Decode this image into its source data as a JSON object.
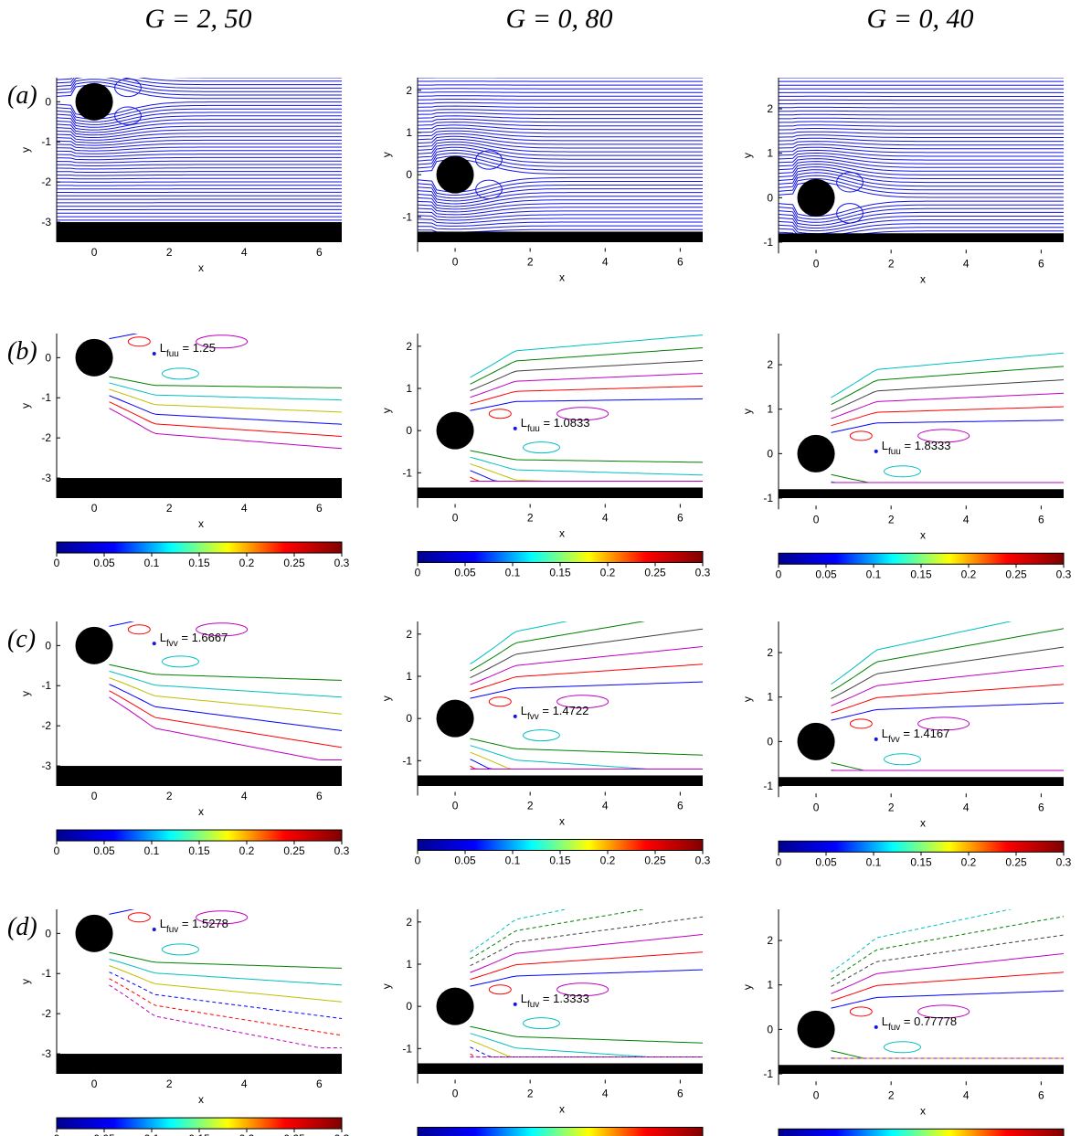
{
  "columns": [
    {
      "label": "G = 2, 50"
    },
    {
      "label": "G = 0, 80"
    },
    {
      "label": "G = 0, 40"
    }
  ],
  "rows": [
    {
      "label": "(a)"
    },
    {
      "label": "(b)"
    },
    {
      "label": "(c)"
    },
    {
      "label": "(d)"
    }
  ],
  "axes": {
    "xlabel": "x",
    "ylabel": "y",
    "xticks": [
      "0",
      "2",
      "4",
      "6"
    ],
    "yticks_by_column": [
      [
        "0",
        "-1",
        "-2",
        "-3"
      ],
      [
        "2",
        "1",
        "0",
        "-1"
      ],
      [
        "2",
        "1",
        "0",
        "-1"
      ]
    ]
  },
  "colorbar": {
    "ticks": [
      "0",
      "0.05",
      "0.1",
      "0.15",
      "0.2",
      "0.25",
      "0.3"
    ],
    "colormap": "jet"
  },
  "annotations": [
    [
      null,
      {
        "text": "L",
        "sub": "fuu",
        "value": "= 1.25"
      },
      {
        "text": "L",
        "sub": "fvv",
        "value": "= 1.6667"
      },
      {
        "text": "L",
        "sub": "fuv",
        "value": "= 1.5278"
      }
    ],
    [
      null,
      {
        "text": "L",
        "sub": "fuu",
        "value": "= 1.0833"
      },
      {
        "text": "L",
        "sub": "fvv",
        "value": "= 1.4722"
      },
      {
        "text": "L",
        "sub": "fuv",
        "value": "= 1.3333"
      }
    ],
    [
      null,
      {
        "text": "L",
        "sub": "fuu",
        "value": "= 1.8333"
      },
      {
        "text": "L",
        "sub": "fvv",
        "value": "= 1.4167"
      },
      {
        "text": "L",
        "sub": "fuv",
        "value": "= 0.77778"
      }
    ]
  ],
  "colors": {
    "streamline": "#1414e6",
    "wall": "#000000",
    "cylinder": "#000000",
    "contour_palette": [
      "#0000ff",
      "#008000",
      "#ff0000",
      "#00bfbf",
      "#bf00bf",
      "#bfbf00",
      "#404040"
    ]
  }
}
